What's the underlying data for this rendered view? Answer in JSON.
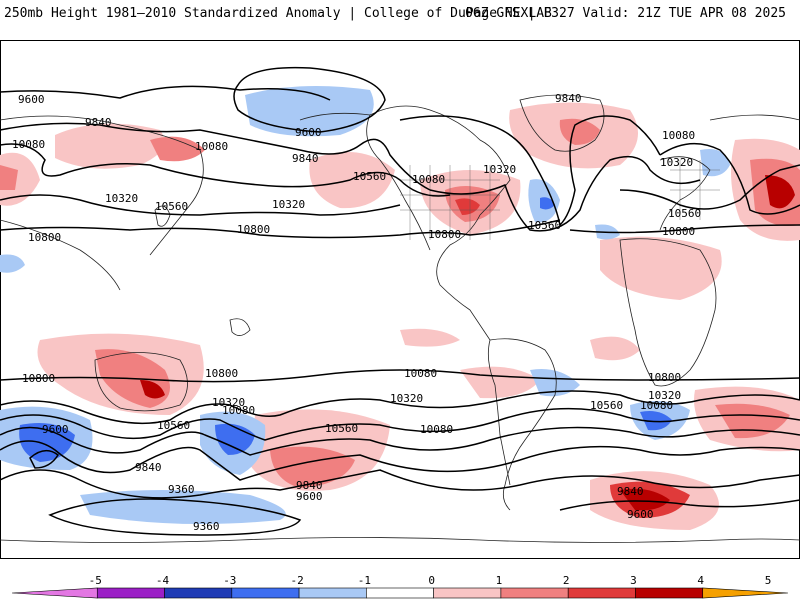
{
  "header": {
    "title": "250mb Height 1981–2010 Standardized Anomaly | College of DuPage NEXLAB",
    "run": "06Z GFS | F327 Valid: 21Z TUE APR 08 2025"
  },
  "contour_labels": [
    "9600",
    "9840",
    "10080",
    "10320",
    "10560",
    "10800",
    "9600",
    "9840",
    "10080",
    "10320",
    "10560",
    "10800",
    "10080",
    "10320",
    "10560",
    "10800",
    "10080",
    "9840",
    "10560",
    "10320",
    "10800",
    "10800",
    "10800",
    "10320",
    "10080",
    "10560",
    "9600",
    "10560",
    "10080",
    "10320",
    "9840",
    "9360",
    "9360",
    "9840",
    "9600",
    "10560",
    "10080",
    "10320",
    "10800",
    "9840",
    "9600",
    "10080",
    "10320",
    "10560",
    "10800"
  ],
  "colorbar": {
    "ticks": [
      "-5",
      "-4",
      "-3",
      "-2",
      "-1",
      "0",
      "1",
      "2",
      "3",
      "4",
      "5"
    ],
    "colors": [
      "#e377e3",
      "#9b1fc6",
      "#1f3bb5",
      "#3e6ef0",
      "#a9c9f5",
      "#ffffff",
      "#f9c5c5",
      "#f08080",
      "#e03a3a",
      "#b80000",
      "#f5a000"
    ]
  },
  "colors": {
    "contour": "#000000",
    "coastline": "#000000",
    "positive_anomaly": "#e03a3a",
    "negative_anomaly": "#3e6ef0"
  }
}
